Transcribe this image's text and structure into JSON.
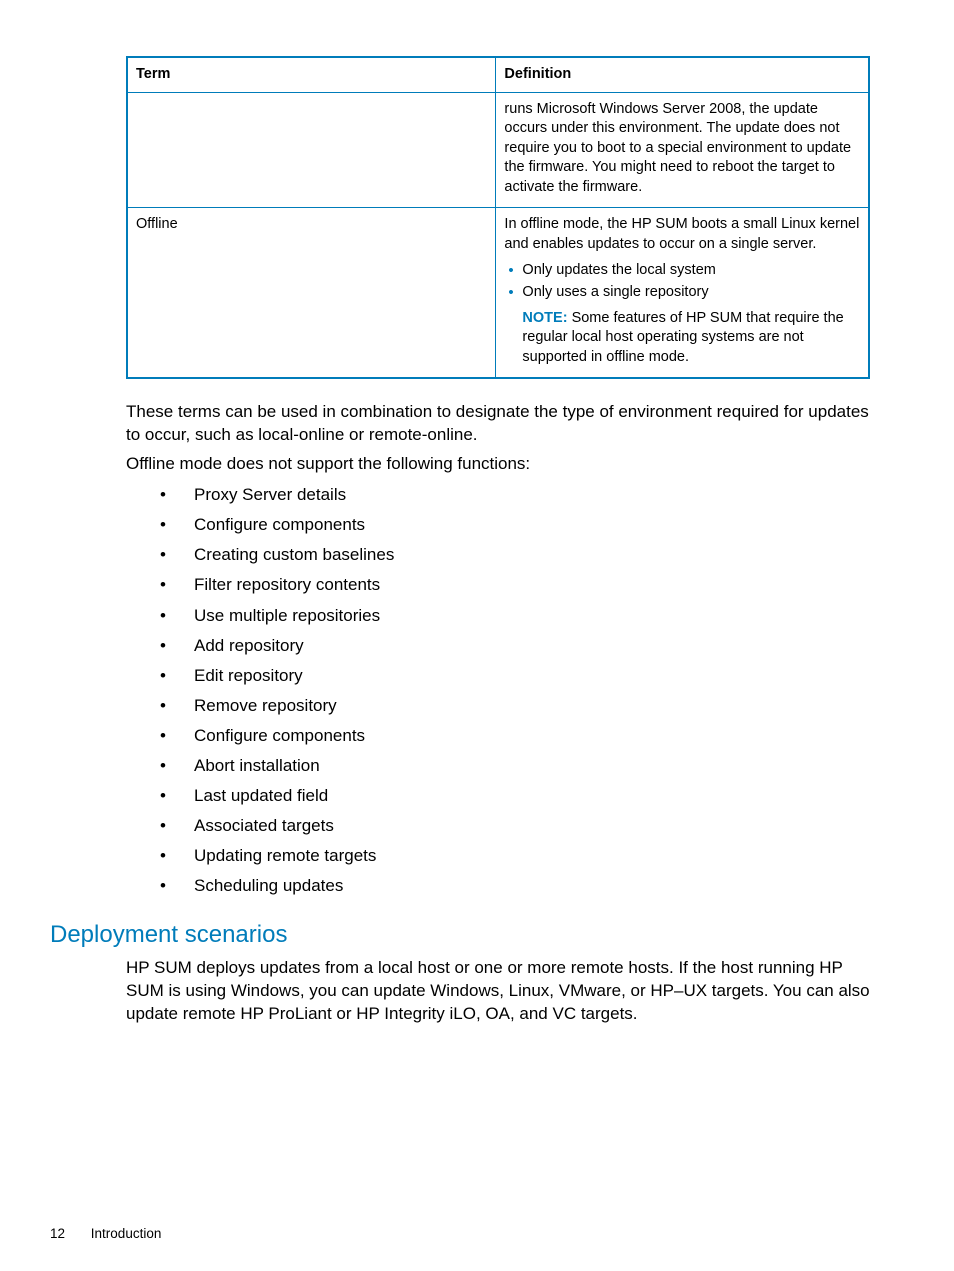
{
  "colors": {
    "accent": "#007cba",
    "text": "#000000",
    "background": "#ffffff"
  },
  "table": {
    "headers": {
      "term": "Term",
      "definition": "Definition"
    },
    "rows": [
      {
        "term": "",
        "definition_text": "runs Microsoft Windows Server 2008, the update occurs under this environment. The update does not require you to boot to a special environment to update the firmware. You might need to reboot the target to activate the firmware."
      },
      {
        "term": "Offline",
        "definition_text": "In offline mode, the HP SUM boots a small Linux kernel and enables updates to occur on a single server.",
        "bullets": [
          "Only updates the local system",
          "Only uses a single repository"
        ],
        "note_label": "NOTE:",
        "note_text": "Some features of HP SUM that require the regular local host operating systems are not supported in offline mode."
      }
    ]
  },
  "paragraphs": {
    "combo": "These terms can be used in combination to designate the type of environment required for updates to occur, such as local-online or remote-online.",
    "offline_intro": "Offline mode does not support the following functions:"
  },
  "unsupported_functions": [
    "Proxy Server details",
    "Configure components",
    "Creating custom baselines",
    "Filter repository contents",
    "Use multiple repositories",
    "Add repository",
    "Edit repository",
    "Remove repository",
    "Configure components",
    "Abort installation",
    "Last updated field",
    "Associated targets",
    "Updating remote targets",
    "Scheduling updates"
  ],
  "heading": "Deployment scenarios",
  "deployment_para": "HP SUM deploys updates from a local host or one or more remote hosts. If the host running HP SUM is using Windows, you can update Windows, Linux, VMware, or HP–UX targets. You can also update remote HP ProLiant or HP Integrity iLO, OA, and VC targets.",
  "footer": {
    "page_num": "12",
    "section": "Introduction"
  }
}
